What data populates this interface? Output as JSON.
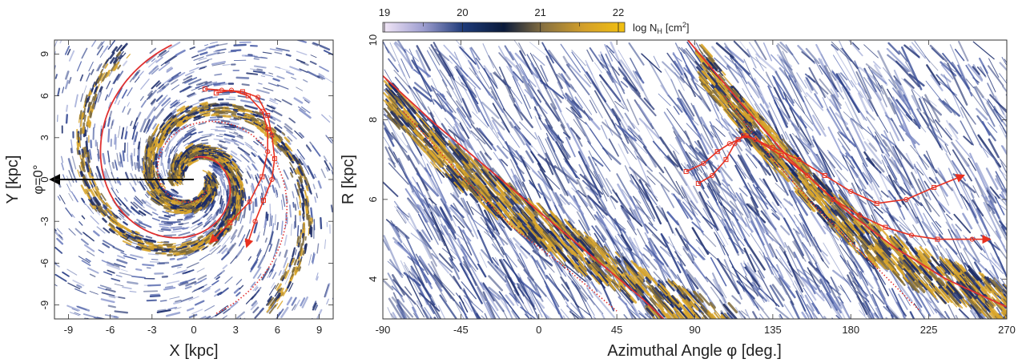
{
  "chart_data": [
    {
      "type": "heatmap",
      "panel": "left",
      "xlabel": "X [kpc]",
      "ylabel": "Y [kpc]",
      "xlim": [
        -10,
        10
      ],
      "ylim": [
        -10,
        10
      ],
      "x_ticks": [
        "-9",
        "-6",
        "-3",
        "0",
        "3",
        "6",
        "9"
      ],
      "y_ticks": [
        "9",
        "6",
        "3",
        "0",
        "-3",
        "-6",
        "-9"
      ],
      "annotation": "φ=0°",
      "phi0_arrow": {
        "from": [
          0,
          0
        ],
        "to": [
          -10,
          0
        ]
      },
      "spiral_arm_ridges": [
        {
          "style": "solid",
          "color": "#e03030"
        },
        {
          "style": "dotted",
          "color": "#e03030"
        }
      ],
      "tracks": [
        {
          "name": "",
          "points": [
            [
              0.8,
              6.5
            ],
            [
              2,
              6.4
            ],
            [
              3.5,
              6.3
            ],
            [
              4.6,
              5.9
            ],
            [
              5.3,
              4.6
            ],
            [
              5.6,
              3.2
            ],
            [
              5.8,
              1.5
            ],
            [
              5.6,
              0
            ],
            [
              5.0,
              -1.5
            ],
            [
              4.4,
              -3
            ],
            [
              3.8,
              -4.8
            ]
          ]
        },
        {
          "name": "",
          "points": [
            [
              1.6,
              6.2
            ],
            [
              2.7,
              6.4
            ],
            [
              3.9,
              6.0
            ],
            [
              4.9,
              4.9
            ],
            [
              5.3,
              3.6
            ],
            [
              5.3,
              2.0
            ],
            [
              4.9,
              0.2
            ],
            [
              4.0,
              -1.6
            ],
            [
              2.6,
              -3.1
            ],
            [
              1.2,
              -4.5
            ]
          ]
        }
      ]
    },
    {
      "type": "heatmap",
      "panel": "right",
      "xlabel": "Azimuthal Angle φ [deg.]",
      "ylabel": "R [kpc]",
      "xlim": [
        -90,
        270
      ],
      "ylim": [
        3.0,
        10.0
      ],
      "x_ticks": [
        "-90",
        "-45",
        "0",
        "45",
        "90",
        "135",
        "180",
        "225",
        "270"
      ],
      "y_ticks": [
        "10",
        "8",
        "6",
        "4"
      ],
      "spiral_arm_ridges": [
        {
          "style": "solid",
          "color": "#e03030",
          "points": [
            [
              -90,
              9.1
            ],
            [
              -60,
              7.9
            ],
            [
              -30,
              6.8
            ],
            [
              0,
              5.7
            ],
            [
              30,
              4.6
            ],
            [
              60,
              3.5
            ],
            [
              72,
              3.0
            ]
          ]
        },
        {
          "style": "dotted",
          "color": "#e03030",
          "points": [
            [
              -78,
              8.2
            ],
            [
              -45,
              6.6
            ],
            [
              -15,
              5.3
            ],
            [
              15,
              4.3
            ],
            [
              45,
              3.2
            ]
          ]
        },
        {
          "style": "solid",
          "color": "#e03030",
          "points": [
            [
              86,
              10
            ],
            [
              115,
              8.5
            ],
            [
              145,
              7.0
            ],
            [
              175,
              5.8
            ],
            [
              205,
              4.8
            ],
            [
              235,
              4.0
            ],
            [
              270,
              3.3
            ]
          ]
        },
        {
          "style": "dotted",
          "color": "#e03030",
          "points": [
            [
              107,
              8.6
            ],
            [
              135,
              7.0
            ],
            [
              160,
              5.8
            ],
            [
              190,
              4.5
            ],
            [
              220,
              3.2
            ]
          ]
        }
      ],
      "tracks": [
        {
          "name": "",
          "points": [
            [
              85,
              6.7
            ],
            [
              95,
              6.9
            ],
            [
              103,
              7.2
            ],
            [
              110,
              7.4
            ],
            [
              115,
              7.5
            ],
            [
              120,
              7.6
            ],
            [
              135,
              7.3
            ],
            [
              150,
              7.0
            ],
            [
              165,
              6.6
            ],
            [
              180,
              6.2
            ],
            [
              195,
              5.9
            ],
            [
              212,
              6.0
            ],
            [
              228,
              6.3
            ],
            [
              245,
              6.6
            ]
          ]
        },
        {
          "name": "",
          "points": [
            [
              92,
              6.4
            ],
            [
              100,
              6.6
            ],
            [
              108,
              7.0
            ],
            [
              113,
              7.4
            ],
            [
              118,
              7.6
            ],
            [
              125,
              7.5
            ],
            [
              140,
              7.1
            ],
            [
              155,
              6.6
            ],
            [
              170,
              6.0
            ],
            [
              185,
              5.6
            ],
            [
              200,
              5.3
            ],
            [
              215,
              5.1
            ],
            [
              230,
              5.0
            ],
            [
              250,
              5.0
            ],
            [
              260,
              5.0
            ]
          ]
        }
      ],
      "colorbar": {
        "label": "log N",
        "label_sub": "H",
        "label_unit": "[cm",
        "label_unit_exp": "2",
        "label_close": "]",
        "ticks": [
          "19",
          "20",
          "21",
          "22"
        ],
        "range": [
          19,
          22
        ],
        "colors": [
          "#f4e8f8",
          "#9e9ed0",
          "#1e3a78",
          "#0a1a3a",
          "#8a7240",
          "#d4a02a",
          "#f2c010"
        ]
      }
    }
  ]
}
